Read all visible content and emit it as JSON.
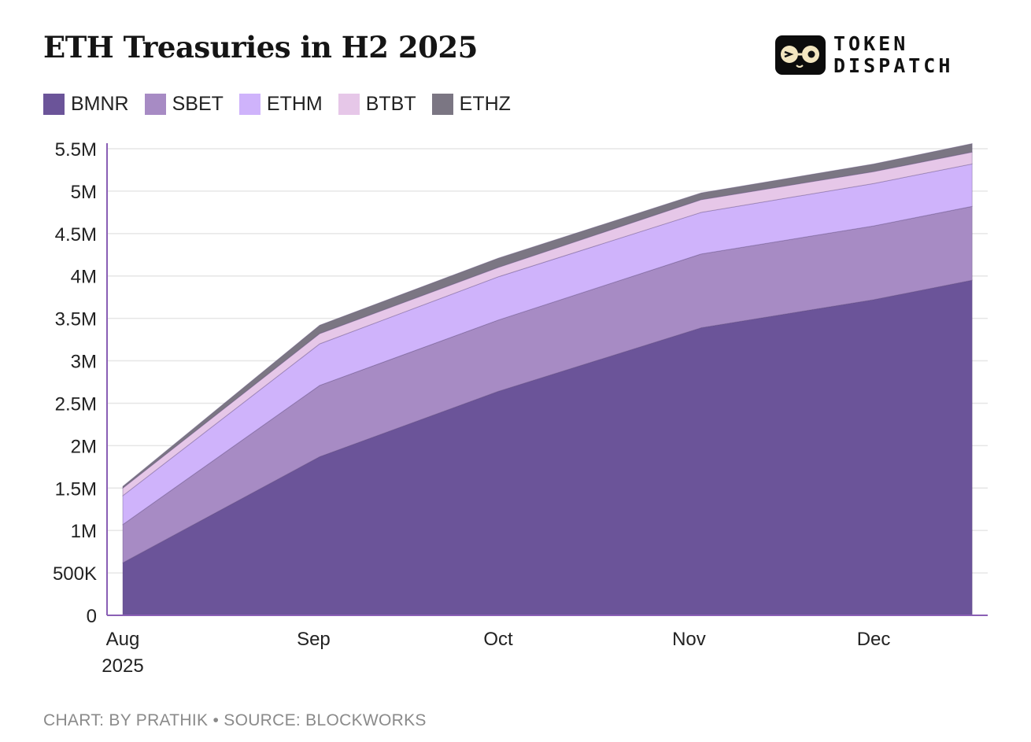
{
  "title": "ETH Treasuries in H2 2025",
  "logo": {
    "line1": "TOKEN",
    "line2": "DISPATCH"
  },
  "footer": {
    "credit": "CHART: BY PRATHIK",
    "separator": "•",
    "source": "SOURCE: BLOCKWORKS"
  },
  "chart_data": {
    "type": "area",
    "stacked": true,
    "title": "ETH Treasuries in H2 2025",
    "xlabel": "",
    "ylabel": "",
    "x": [
      "2025-08-01",
      "2025-09-02",
      "2025-10-01",
      "2025-11-03",
      "2025-12-01",
      "2025-12-17"
    ],
    "x_ticks": [
      {
        "date": "2025-08-01",
        "label": "Aug",
        "sublabel": "2025"
      },
      {
        "date": "2025-09-01",
        "label": "Sep"
      },
      {
        "date": "2025-10-01",
        "label": "Oct"
      },
      {
        "date": "2025-11-01",
        "label": "Nov"
      },
      {
        "date": "2025-12-01",
        "label": "Dec"
      }
    ],
    "ylim": [
      0,
      5500000
    ],
    "y_ticks": [
      {
        "value": 0,
        "label": "0"
      },
      {
        "value": 500000,
        "label": "500K"
      },
      {
        "value": 1000000,
        "label": "1M"
      },
      {
        "value": 1500000,
        "label": "1.5M"
      },
      {
        "value": 2000000,
        "label": "2M"
      },
      {
        "value": 2500000,
        "label": "2.5M"
      },
      {
        "value": 3000000,
        "label": "3M"
      },
      {
        "value": 3500000,
        "label": "3.5M"
      },
      {
        "value": 4000000,
        "label": "4M"
      },
      {
        "value": 4500000,
        "label": "4.5M"
      },
      {
        "value": 5000000,
        "label": "5M"
      },
      {
        "value": 5500000,
        "label": "5.5M"
      }
    ],
    "grid": true,
    "legend_position": "top-left",
    "series": [
      {
        "name": "BMNR",
        "color": "#6b5499",
        "values": [
          620000,
          1870000,
          2640000,
          3390000,
          3720000,
          3950000
        ]
      },
      {
        "name": "SBET",
        "color": "#a78bc4",
        "values": [
          450000,
          840000,
          840000,
          870000,
          870000,
          870000
        ]
      },
      {
        "name": "ETHM",
        "color": "#cfb3fb",
        "values": [
          340000,
          490000,
          510000,
          490000,
          500000,
          500000
        ]
      },
      {
        "name": "BTBT",
        "color": "#e6c7e8",
        "values": [
          90000,
          120000,
          110000,
          150000,
          140000,
          140000
        ]
      },
      {
        "name": "ETHZ",
        "color": "#7b7683",
        "values": [
          20000,
          100000,
          110000,
          80000,
          90000,
          100000
        ]
      }
    ]
  }
}
